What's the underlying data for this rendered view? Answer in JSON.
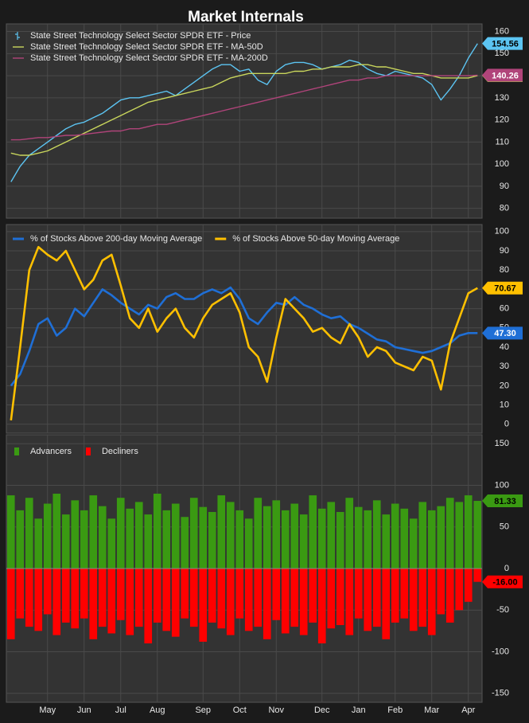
{
  "chart_data": [
    {
      "type": "line",
      "title": "Market Internals",
      "ylim": [
        77,
        162
      ],
      "yticks": [
        80,
        90,
        100,
        110,
        120,
        130,
        140,
        150,
        160
      ],
      "grid": true,
      "legend": "upper left",
      "series": [
        {
          "name": "State Street Technology Select Sector SPDR ETF - Price",
          "color": "#5cc4f2",
          "values": [
            92,
            99,
            104,
            107,
            110,
            113,
            116,
            118,
            119,
            121,
            123,
            126,
            129,
            130,
            130,
            131,
            132,
            133,
            131,
            134,
            137,
            140,
            143,
            145,
            145,
            142,
            143,
            138,
            136,
            142,
            145,
            146,
            146,
            145,
            143,
            144,
            145,
            147,
            146,
            143,
            141,
            140,
            142,
            141,
            140,
            139,
            136,
            129,
            134,
            140,
            148,
            154.56
          ]
        },
        {
          "name": "State Street Technology Select Sector SPDR ETF - MA-50D",
          "color": "#c9d65c",
          "values": [
            105,
            104,
            104,
            105,
            106,
            108,
            110,
            112,
            114,
            116,
            118,
            120,
            122,
            124,
            126,
            128,
            129,
            130,
            131,
            132,
            133,
            134,
            135,
            137,
            139,
            140,
            141,
            141,
            141,
            141,
            141,
            142,
            142,
            143,
            143,
            144,
            144,
            144,
            145,
            145,
            144,
            144,
            143,
            142,
            141,
            141,
            140,
            139,
            139,
            139,
            139,
            140.06
          ]
        },
        {
          "name": "State Street Technology Select Sector SPDR ETF - MA-200D",
          "color": "#b0447a",
          "values": [
            111,
            111,
            111.5,
            112,
            112,
            112.5,
            113,
            113,
            113.5,
            114,
            114.5,
            115,
            115,
            116,
            116,
            117,
            118,
            118,
            119,
            120,
            121,
            122,
            123,
            124,
            125,
            126,
            127,
            128,
            129,
            130,
            131,
            132,
            133,
            134,
            135,
            136,
            137,
            138,
            138,
            139,
            139,
            140,
            140,
            140,
            140,
            140,
            140,
            140,
            140,
            140,
            140,
            140.26
          ]
        }
      ]
    },
    {
      "type": "line",
      "ylim": [
        -3,
        102
      ],
      "yticks": [
        0,
        10,
        20,
        30,
        40,
        50,
        60,
        70,
        80,
        90,
        100
      ],
      "grid": true,
      "legend": "upper left",
      "series": [
        {
          "name": "% of Stocks Above 200-day Moving Average",
          "color": "#1f6fd6",
          "values": [
            20,
            26,
            38,
            52,
            55,
            46,
            50,
            60,
            56,
            63,
            70,
            67,
            63,
            60,
            57,
            62,
            60,
            66,
            68,
            65,
            65,
            68,
            70,
            68,
            71,
            65,
            55,
            52,
            58,
            63,
            62,
            66,
            62,
            60,
            57,
            55,
            56,
            52,
            50,
            47,
            44,
            43,
            40,
            39,
            38,
            37,
            38,
            40,
            42,
            46,
            47.3,
            47.3
          ],
          "value_labels": [
            null,
            null,
            null,
            null,
            null,
            null,
            null,
            null,
            null,
            null,
            null,
            null,
            null,
            null,
            null,
            null,
            null,
            null,
            null,
            null,
            null,
            null,
            null,
            null,
            null,
            null,
            null,
            null,
            null,
            null,
            null,
            null,
            null,
            null,
            null,
            null,
            null,
            null,
            null,
            null,
            null,
            null,
            null,
            null,
            null,
            null,
            null,
            null,
            null,
            null,
            null,
            "47.30"
          ]
        },
        {
          "name": "% of Stocks Above 50-day Moving Average",
          "color": "#ffc000",
          "values": [
            2,
            40,
            80,
            92,
            88,
            85,
            90,
            80,
            70,
            75,
            85,
            88,
            72,
            55,
            50,
            60,
            48,
            55,
            60,
            50,
            45,
            55,
            62,
            65,
            68,
            58,
            40,
            35,
            22,
            45,
            65,
            60,
            55,
            48,
            50,
            45,
            42,
            52,
            45,
            35,
            40,
            38,
            32,
            30,
            28,
            35,
            33,
            18,
            42,
            55,
            68,
            70.67
          ]
        }
      ]
    },
    {
      "type": "bar",
      "ylim": [
        -157,
        157
      ],
      "yticks": [
        -150,
        -100,
        -50,
        0,
        50,
        100,
        150
      ],
      "grid": true,
      "legend": "upper left",
      "categories": [
        null,
        null,
        null,
        null,
        "May",
        null,
        null,
        null,
        "Jun",
        null,
        null,
        null,
        "Jul",
        null,
        null,
        null,
        "Aug",
        null,
        null,
        null,
        null,
        "Sep",
        null,
        null,
        null,
        "Oct",
        null,
        null,
        null,
        "Nov",
        null,
        null,
        null,
        null,
        "Dec",
        null,
        null,
        null,
        "Jan",
        null,
        null,
        null,
        "Feb",
        null,
        null,
        null,
        "Mar",
        null,
        null,
        null,
        "Apr",
        null
      ],
      "series": [
        {
          "name": "Advancers",
          "color": "#3a9a12",
          "values": [
            88,
            70,
            85,
            60,
            78,
            90,
            65,
            82,
            70,
            88,
            75,
            60,
            85,
            72,
            80,
            65,
            90,
            70,
            78,
            62,
            85,
            74,
            68,
            88,
            80,
            70,
            60,
            85,
            75,
            82,
            70,
            78,
            65,
            88,
            72,
            80,
            68,
            85,
            74,
            70,
            82,
            65,
            78,
            72,
            60,
            80,
            70,
            75,
            85,
            80,
            88,
            81.33
          ]
        },
        {
          "name": "Decliners",
          "color": "#ff0000",
          "values": [
            -85,
            -60,
            -70,
            -75,
            -55,
            -80,
            -65,
            -72,
            -60,
            -85,
            -70,
            -78,
            -62,
            -80,
            -70,
            -90,
            -65,
            -75,
            -82,
            -60,
            -70,
            -88,
            -65,
            -72,
            -80,
            -60,
            -75,
            -70,
            -85,
            -62,
            -78,
            -70,
            -80,
            -65,
            -90,
            -72,
            -68,
            -80,
            -60,
            -75,
            -70,
            -85,
            -65,
            -60,
            -75,
            -70,
            -80,
            -55,
            -65,
            -50,
            -40,
            -16
          ],
          "value_labels": [
            null,
            null,
            null,
            null,
            null,
            null,
            null,
            null,
            null,
            null,
            null,
            null,
            null,
            null,
            null,
            null,
            null,
            null,
            null,
            null,
            null,
            null,
            null,
            null,
            null,
            null,
            null,
            null,
            null,
            null,
            null,
            null,
            null,
            null,
            null,
            null,
            null,
            null,
            null,
            null,
            null,
            null,
            null,
            null,
            null,
            null,
            null,
            null,
            null,
            null,
            null,
            "-16.00"
          ]
        }
      ]
    }
  ]
}
